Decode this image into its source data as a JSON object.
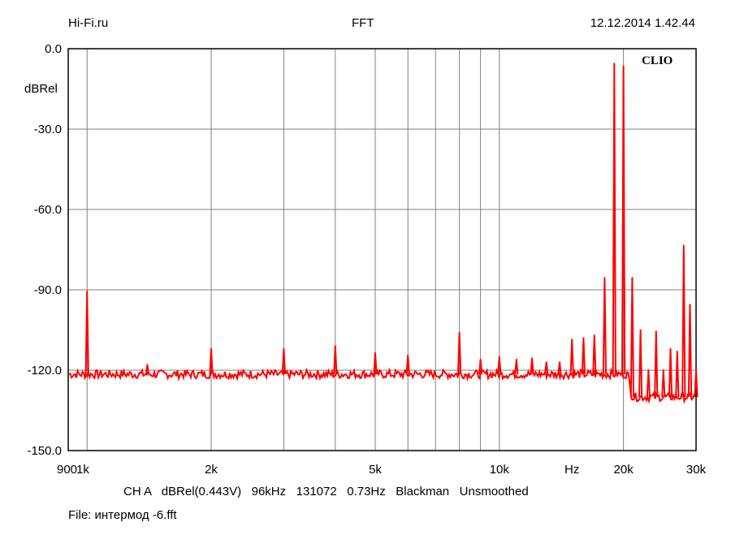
{
  "header": {
    "left": "Hi-Fi.ru",
    "center": "FFT",
    "right": "12.12.2014 1.42.44"
  },
  "brand": "CLIO",
  "info_line": {
    "channel": "CH A",
    "unit": "dBRel(0.443V)",
    "sample_rate": "96kHz",
    "fft_size": "131072",
    "resolution": "0.73Hz",
    "window": "Blackman",
    "smoothing": "Unsmoothed"
  },
  "file_line": {
    "label": "File:",
    "name": "интермод -6.fft"
  },
  "colors": {
    "trace": "#ff0000",
    "grid": "#808080",
    "frame": "#000000"
  },
  "chart_data": {
    "type": "line",
    "title": "FFT",
    "ylabel": "dBRel",
    "xlabel": "Hz",
    "x_scale": "log",
    "xlim": [
      900,
      30000
    ],
    "ylim": [
      -150,
      0
    ],
    "grid": true,
    "y_ticks": [
      {
        "value": 0,
        "label": "0.0"
      },
      {
        "value": -30,
        "label": "-30.0"
      },
      {
        "value": -60,
        "label": "-60.0"
      },
      {
        "value": -90,
        "label": "-90.0"
      },
      {
        "value": -120,
        "label": "-120.0"
      },
      {
        "value": -150,
        "label": "-150.0"
      }
    ],
    "x_tick_labels": [
      {
        "value": 900,
        "label": "900"
      },
      {
        "value": 1000,
        "label": "1k"
      },
      {
        "value": 2000,
        "label": "2k"
      },
      {
        "value": 5000,
        "label": "5k"
      },
      {
        "value": 10000,
        "label": "10k"
      },
      {
        "value": 15000,
        "label": "Hz"
      },
      {
        "value": 20000,
        "label": "20k"
      },
      {
        "value": 30000,
        "label": "30k"
      }
    ],
    "x_gridlines": [
      1000,
      2000,
      3000,
      4000,
      5000,
      6000,
      7000,
      8000,
      9000,
      10000,
      20000,
      30000
    ],
    "noise_floor": [
      {
        "from": 900,
        "to": 20500,
        "level": -121.5
      },
      {
        "from": 21000,
        "to": 30000,
        "level": -130
      }
    ],
    "series": [
      {
        "peaks": [
          {
            "x": 1000,
            "y": -90.5
          },
          {
            "x": 1400,
            "y": -118
          },
          {
            "x": 2000,
            "y": -112
          },
          {
            "x": 3000,
            "y": -112
          },
          {
            "x": 4000,
            "y": -111
          },
          {
            "x": 5000,
            "y": -113.5
          },
          {
            "x": 6000,
            "y": -114.5
          },
          {
            "x": 8000,
            "y": -106
          },
          {
            "x": 9000,
            "y": -116
          },
          {
            "x": 10000,
            "y": -115
          },
          {
            "x": 11000,
            "y": -116
          },
          {
            "x": 12000,
            "y": -115.5
          },
          {
            "x": 13000,
            "y": -117
          },
          {
            "x": 14000,
            "y": -117
          },
          {
            "x": 15000,
            "y": -108.5
          },
          {
            "x": 16000,
            "y": -108
          },
          {
            "x": 17000,
            "y": -107
          },
          {
            "x": 18000,
            "y": -85.5
          },
          {
            "x": 19000,
            "y": -5.5
          },
          {
            "x": 20000,
            "y": -6.5
          },
          {
            "x": 21000,
            "y": -85.5
          },
          {
            "x": 22000,
            "y": -105
          },
          {
            "x": 23000,
            "y": -120
          },
          {
            "x": 24000,
            "y": -105.5
          },
          {
            "x": 25000,
            "y": -120
          },
          {
            "x": 26000,
            "y": -112
          },
          {
            "x": 27000,
            "y": -113
          },
          {
            "x": 28000,
            "y": -73.5
          },
          {
            "x": 29000,
            "y": -95.5
          },
          {
            "x": 30000,
            "y": -120
          }
        ]
      }
    ]
  }
}
